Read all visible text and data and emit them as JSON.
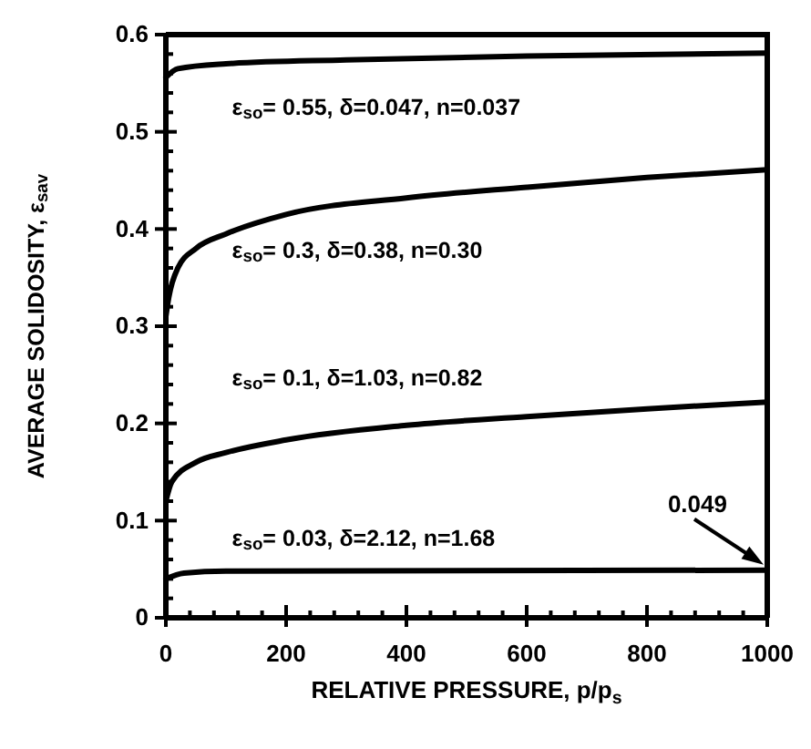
{
  "chart_data": {
    "type": "line",
    "xlabel": "RELATIVE PRESSURE, p/p$_{s}$",
    "ylabel": "AVERAGE SOLIDOSITY, ε$_{sav}$",
    "xlim": [
      0,
      1000
    ],
    "ylim": [
      0,
      0.6
    ],
    "xticks": [
      0,
      {
        "value": 40,
        "label": null
      },
      {
        "value": 80,
        "label": null
      },
      {
        "value": 120,
        "label": null
      },
      {
        "value": 160,
        "label": null
      },
      200,
      {
        "value": 240,
        "label": null
      },
      {
        "value": 280,
        "label": null
      },
      {
        "value": 320,
        "label": null
      },
      {
        "value": 360,
        "label": null
      },
      400,
      {
        "value": 440,
        "label": null
      },
      {
        "value": 480,
        "label": null
      },
      {
        "value": 520,
        "label": null
      },
      {
        "value": 560,
        "label": null
      },
      600,
      {
        "value": 640,
        "label": null
      },
      {
        "value": 680,
        "label": null
      },
      {
        "value": 720,
        "label": null
      },
      {
        "value": 760,
        "label": null
      },
      800,
      {
        "value": 840,
        "label": null
      },
      {
        "value": 880,
        "label": null
      },
      {
        "value": 920,
        "label": null
      },
      {
        "value": 960,
        "label": null
      },
      1000
    ],
    "yticks": [
      0,
      {
        "value": 0.02,
        "label": null
      },
      {
        "value": 0.04,
        "label": null
      },
      {
        "value": 0.06,
        "label": null
      },
      {
        "value": 0.08,
        "label": null
      },
      0.1,
      {
        "value": 0.12,
        "label": null
      },
      {
        "value": 0.14,
        "label": null
      },
      {
        "value": 0.16,
        "label": null
      },
      {
        "value": 0.18,
        "label": null
      },
      0.2,
      {
        "value": 0.22,
        "label": null
      },
      {
        "value": 0.24,
        "label": null
      },
      {
        "value": 0.26,
        "label": null
      },
      {
        "value": 0.28,
        "label": null
      },
      0.3,
      {
        "value": 0.32,
        "label": null
      },
      {
        "value": 0.34,
        "label": null
      },
      {
        "value": 0.36,
        "label": null
      },
      {
        "value": 0.38,
        "label": null
      },
      0.4,
      {
        "value": 0.42,
        "label": null
      },
      {
        "value": 0.44,
        "label": null
      },
      {
        "value": 0.46,
        "label": null
      },
      {
        "value": 0.48,
        "label": null
      },
      0.5,
      {
        "value": 0.52,
        "label": null
      },
      {
        "value": 0.54,
        "label": null
      },
      {
        "value": 0.56,
        "label": null
      },
      {
        "value": 0.58,
        "label": null
      },
      0.6
    ],
    "grid": false,
    "legend": false,
    "marker": "none",
    "line_style": "solid",
    "series": [
      {
        "name": "ε$_{so}$= 0.55, δ=0.047, n=0.037",
        "color": "#000000",
        "x": [
          0,
          20,
          100,
          300,
          600,
          1000
        ],
        "values": [
          0.556,
          0.565,
          0.57,
          0.574,
          0.578,
          0.581
        ]
      },
      {
        "name": "ε$_{so}$= 0.3, δ=0.38, n=0.30",
        "color": "#000000",
        "x": [
          0,
          5,
          20,
          50,
          100,
          200,
          400,
          600,
          800,
          1000
        ],
        "values": [
          0.31,
          0.33,
          0.36,
          0.38,
          0.395,
          0.415,
          0.432,
          0.443,
          0.453,
          0.461
        ]
      },
      {
        "name": "ε$_{so}$= 0.1, δ=1.03, n=0.82",
        "color": "#000000",
        "x": [
          0,
          10,
          50,
          100,
          200,
          400,
          600,
          800,
          1000
        ],
        "values": [
          0.12,
          0.14,
          0.16,
          0.17,
          0.183,
          0.198,
          0.207,
          0.215,
          0.222
        ]
      },
      {
        "name": "ε$_{so}$= 0.03, δ=2.12, n=1.68",
        "color": "#000000",
        "x": [
          0,
          30,
          100,
          1000
        ],
        "values": [
          0.04,
          0.046,
          0.048,
          0.049
        ]
      }
    ],
    "annotations": [
      {
        "text": "0.049",
        "x": 1000,
        "y": 0.049
      }
    ]
  }
}
